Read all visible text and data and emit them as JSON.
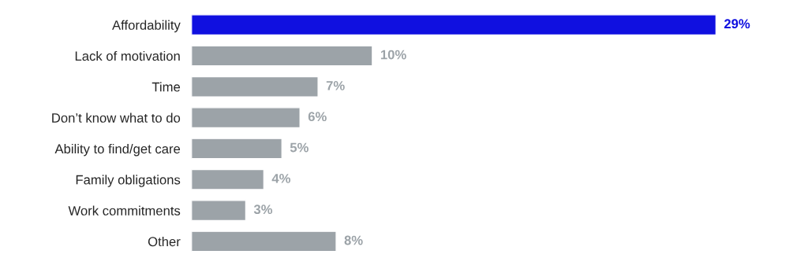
{
  "chart_data": {
    "type": "bar",
    "orientation": "horizontal",
    "categories": [
      "Affordability",
      "Lack of motivation",
      "Time",
      "Don’t know what to do",
      "Ability to find/get care",
      "Family obligations",
      "Work commitments",
      "Other"
    ],
    "values": [
      29,
      10,
      7,
      6,
      5,
      4,
      3,
      8
    ],
    "colors": [
      "#1010e0",
      "#9ca3a8",
      "#9ca3a8",
      "#9ca3a8",
      "#9ca3a8",
      "#9ca3a8",
      "#9ca3a8",
      "#9ca3a8"
    ],
    "value_labels": [
      "29%",
      "10%",
      "7%",
      "6%",
      "5%",
      "4%",
      "3%",
      "8%"
    ],
    "grid": false,
    "legend": false
  }
}
